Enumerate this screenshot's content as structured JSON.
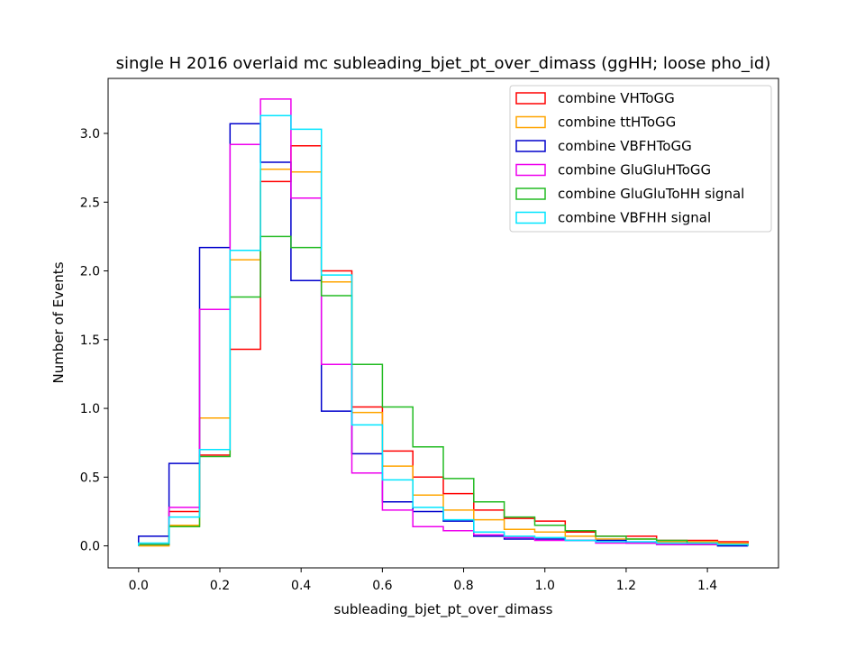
{
  "chart_data": {
    "type": "step-histogram",
    "title": "single H 2016 overlaid mc subleading_bjet_pt_over_dimass (ggHH; loose pho_id)",
    "xlabel": "subleading_bjet_pt_over_dimass",
    "ylabel": "Number of Events",
    "xlim": [
      -0.075,
      1.575
    ],
    "ylim": [
      -0.16,
      3.4
    ],
    "x_ticks": [
      0.0,
      0.2,
      0.4,
      0.6,
      0.8,
      1.0,
      1.2,
      1.4
    ],
    "x_tick_labels": [
      "0.0",
      "0.2",
      "0.4",
      "0.6",
      "0.8",
      "1.0",
      "1.2",
      "1.4"
    ],
    "y_ticks": [
      0.0,
      0.5,
      1.0,
      1.5,
      2.0,
      2.5,
      3.0
    ],
    "y_tick_labels": [
      "0.0",
      "0.5",
      "1.0",
      "1.5",
      "2.0",
      "2.5",
      "3.0"
    ],
    "grid": false,
    "legend_position": "top-right",
    "bin_edges": [
      0.0,
      0.075,
      0.15,
      0.225,
      0.3,
      0.375,
      0.45,
      0.525,
      0.6,
      0.675,
      0.75,
      0.825,
      0.9,
      0.975,
      1.05,
      1.125,
      1.2,
      1.275,
      1.35,
      1.425,
      1.5
    ],
    "series": [
      {
        "name": "combine VHToGG",
        "color": "#ff0000",
        "values": [
          0.01,
          0.25,
          0.66,
          1.43,
          2.65,
          2.91,
          2.0,
          1.01,
          0.69,
          0.5,
          0.38,
          0.26,
          0.2,
          0.18,
          0.1,
          0.07,
          0.07,
          0.04,
          0.04,
          0.03
        ]
      },
      {
        "name": "combine ttHToGG",
        "color": "#ffa500",
        "values": [
          0.0,
          0.15,
          0.93,
          2.08,
          2.74,
          2.72,
          1.92,
          0.97,
          0.58,
          0.37,
          0.26,
          0.19,
          0.12,
          0.1,
          0.07,
          0.05,
          0.05,
          0.03,
          0.03,
          0.02
        ]
      },
      {
        "name": "combine VBFHToGG",
        "color": "#0000cc",
        "values": [
          0.07,
          0.6,
          2.17,
          3.07,
          2.79,
          1.93,
          0.98,
          0.67,
          0.32,
          0.25,
          0.18,
          0.07,
          0.05,
          0.05,
          0.04,
          0.04,
          0.02,
          0.01,
          0.01,
          0.0
        ]
      },
      {
        "name": "combine GluGluHToGG",
        "color": "#ee00ee",
        "values": [
          0.01,
          0.28,
          1.72,
          2.92,
          3.25,
          2.53,
          1.32,
          0.53,
          0.26,
          0.14,
          0.11,
          0.08,
          0.06,
          0.04,
          0.04,
          0.02,
          0.02,
          0.01,
          0.01,
          0.01
        ]
      },
      {
        "name": "combine GluGluToHH signal",
        "color": "#22bb22",
        "values": [
          0.01,
          0.14,
          0.65,
          1.81,
          2.25,
          2.17,
          1.82,
          1.32,
          1.01,
          0.72,
          0.49,
          0.32,
          0.21,
          0.15,
          0.11,
          0.07,
          0.05,
          0.04,
          0.02,
          0.01
        ]
      },
      {
        "name": "combine VBFHH signal",
        "color": "#00e5ff",
        "values": [
          0.02,
          0.21,
          0.7,
          2.15,
          3.13,
          3.03,
          1.97,
          0.88,
          0.48,
          0.28,
          0.19,
          0.1,
          0.07,
          0.06,
          0.04,
          0.03,
          0.03,
          0.02,
          0.02,
          0.01
        ]
      }
    ]
  }
}
